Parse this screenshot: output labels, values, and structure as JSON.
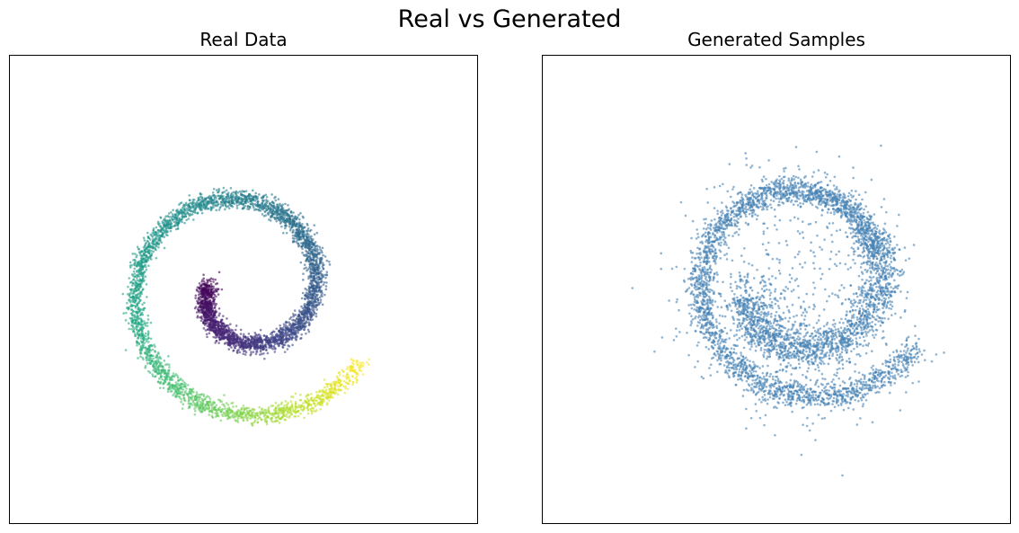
{
  "figure": {
    "title": "Real vs Generated"
  },
  "chart_data": [
    {
      "type": "scatter",
      "title": "Real Data",
      "xlabel": "",
      "ylabel": "",
      "xlim": [
        -4.5,
        4.5
      ],
      "ylim": [
        -4.5,
        4.5
      ],
      "grid": false,
      "ticks": false,
      "colormap": "viridis",
      "color_by": "spiral angle (low = purple, high = yellow)",
      "point_count": 5000,
      "spiral": {
        "kind": "archimedean",
        "start_angle": 3.0,
        "end_angle": 12.0,
        "radius_per_radian": 0.22,
        "center": [
          0.0,
          0.0
        ],
        "noise": 0.09
      },
      "marker_alpha": 0.6
    },
    {
      "type": "scatter",
      "title": "Generated Samples",
      "xlabel": "",
      "ylabel": "",
      "xlim": [
        -4.5,
        4.5
      ],
      "ylim": [
        -4.5,
        4.5
      ],
      "grid": false,
      "ticks": false,
      "color": "#4682b4",
      "point_count": 5000,
      "structure": "approximate spiral with smeared inner arm and scattered outliers",
      "marker_alpha": 0.6
    }
  ]
}
